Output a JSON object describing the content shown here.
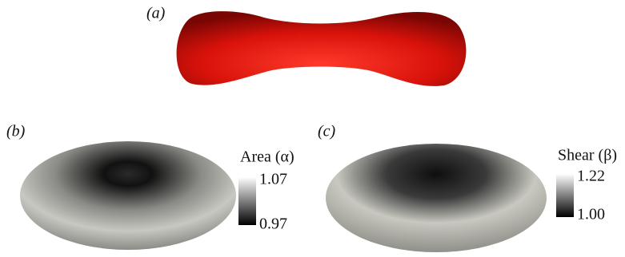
{
  "panels": [
    {
      "label": "(a)"
    },
    {
      "label": "(b)",
      "colorbar": {
        "title": "Area (α)",
        "max_label": "1.07",
        "min_label": "0.97"
      }
    },
    {
      "label": "(c)",
      "colorbar": {
        "title": "Shear (β)",
        "max_label": "1.22",
        "min_label": "1.00"
      }
    }
  ]
}
